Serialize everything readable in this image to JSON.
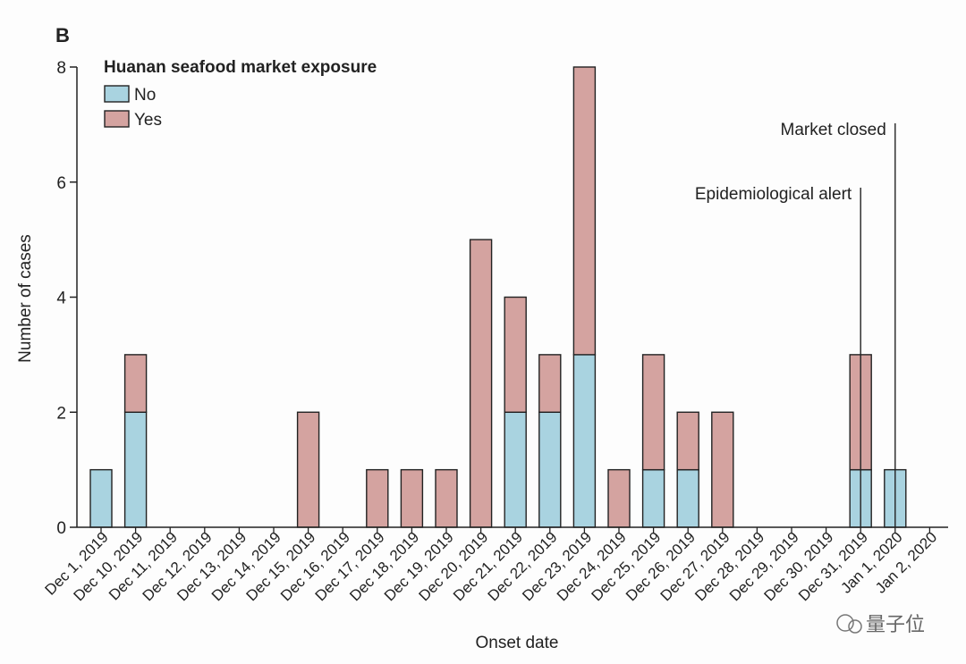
{
  "panel_label": "B",
  "colors": {
    "no": "#a9d3e0",
    "yes": "#d4a3a0",
    "stroke": "#222222"
  },
  "watermark": "量子位",
  "chart_data": {
    "type": "bar",
    "stacked": true,
    "title": "",
    "xlabel": "Onset date",
    "ylabel": "Number of cases",
    "ylim": [
      0,
      8
    ],
    "yticks": [
      0,
      2,
      4,
      6,
      8
    ],
    "legend": {
      "title": "Huanan seafood market exposure",
      "placement": "top-left",
      "entries": [
        "No",
        "Yes"
      ]
    },
    "categories": [
      "Dec 1, 2019",
      "Dec 10, 2019",
      "Dec 11, 2019",
      "Dec 12, 2019",
      "Dec 13, 2019",
      "Dec 14, 2019",
      "Dec 15, 2019",
      "Dec 16, 2019",
      "Dec 17, 2019",
      "Dec 18, 2019",
      "Dec 19, 2019",
      "Dec 20, 2019",
      "Dec 21, 2019",
      "Dec 22, 2019",
      "Dec 23, 2019",
      "Dec 24, 2019",
      "Dec 25, 2019",
      "Dec 26, 2019",
      "Dec 27, 2019",
      "Dec 28, 2019",
      "Dec 29, 2019",
      "Dec 30, 2019",
      "Dec 31, 2019",
      "Jan 1, 2020",
      "Jan 2, 2020"
    ],
    "series": [
      {
        "name": "No",
        "values": [
          1,
          2,
          0,
          0,
          0,
          0,
          0,
          0,
          0,
          0,
          0,
          0,
          2,
          2,
          3,
          0,
          1,
          1,
          0,
          0,
          0,
          0,
          1,
          1,
          0
        ]
      },
      {
        "name": "Yes",
        "values": [
          0,
          1,
          0,
          0,
          0,
          0,
          2,
          0,
          1,
          1,
          1,
          5,
          2,
          1,
          5,
          1,
          2,
          1,
          2,
          0,
          0,
          0,
          2,
          0,
          0
        ]
      }
    ],
    "annotations": [
      {
        "text": "Epidemiological alert",
        "category": "Dec 31, 2019"
      },
      {
        "text": "Market closed",
        "category": "Jan 1, 2020"
      }
    ]
  }
}
